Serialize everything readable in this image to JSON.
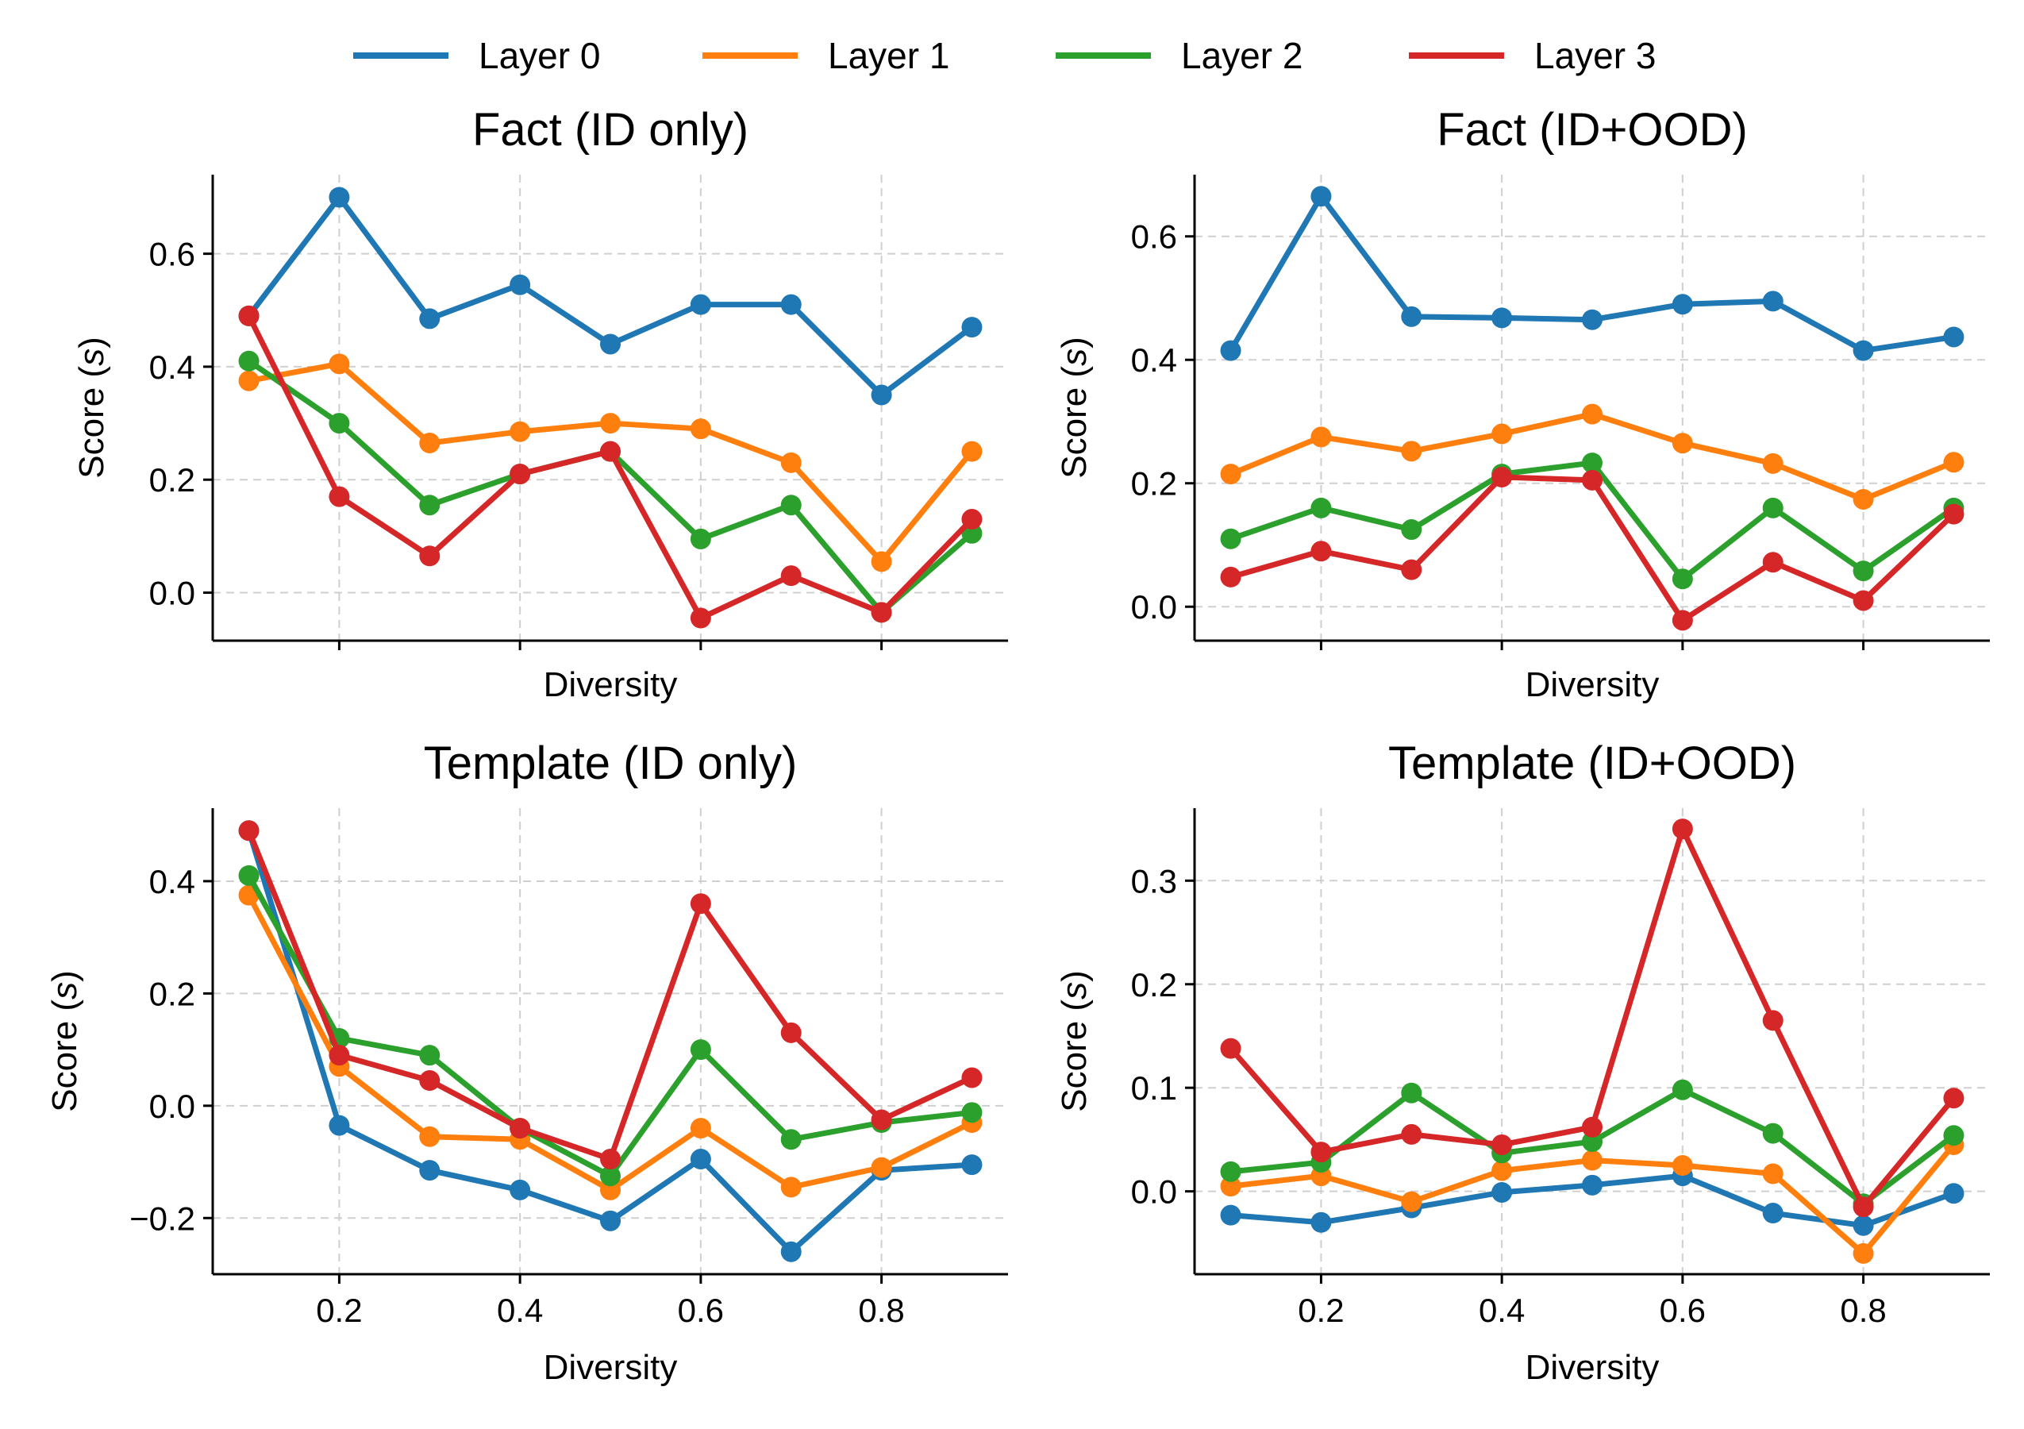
{
  "legend": [
    {
      "name": "Layer 0",
      "color": "#1f77b4"
    },
    {
      "name": "Layer 1",
      "color": "#ff7f0e"
    },
    {
      "name": "Layer 2",
      "color": "#2ca02c"
    },
    {
      "name": "Layer 3",
      "color": "#d62728"
    }
  ],
  "chart_data": [
    {
      "type": "line",
      "title": "Fact (ID only)",
      "xlabel": "Diversity",
      "ylabel": "Score (s)",
      "xlim": [
        0.06,
        0.94
      ],
      "ylim": [
        -0.085,
        0.74
      ],
      "xticks": [
        0.2,
        0.4,
        0.6,
        0.8
      ],
      "show_xtick_labels": false,
      "yticks": [
        0.0,
        0.2,
        0.4,
        0.6
      ],
      "ytick_labels": [
        "0.0",
        "0.2",
        "0.4",
        "0.6"
      ],
      "x": [
        0.1,
        0.2,
        0.3,
        0.4,
        0.5,
        0.6,
        0.7,
        0.8,
        0.9
      ],
      "series": [
        {
          "name": "Layer 0",
          "values": [
            0.49,
            0.7,
            0.485,
            0.545,
            0.44,
            0.51,
            0.51,
            0.35,
            0.47
          ]
        },
        {
          "name": "Layer 1",
          "values": [
            0.375,
            0.405,
            0.265,
            0.285,
            0.3,
            0.29,
            0.23,
            0.055,
            0.25
          ]
        },
        {
          "name": "Layer 2",
          "values": [
            0.41,
            0.3,
            0.155,
            0.21,
            0.25,
            0.095,
            0.155,
            -0.035,
            0.105
          ]
        },
        {
          "name": "Layer 3",
          "values": [
            0.49,
            0.17,
            0.065,
            0.21,
            0.25,
            -0.045,
            0.03,
            -0.035,
            0.13
          ]
        }
      ]
    },
    {
      "type": "line",
      "title": "Fact (ID+OOD)",
      "xlabel": "Diversity",
      "ylabel": "Score (s)",
      "xlim": [
        0.06,
        0.94
      ],
      "ylim": [
        -0.055,
        0.7
      ],
      "xticks": [
        0.2,
        0.4,
        0.6,
        0.8
      ],
      "show_xtick_labels": false,
      "yticks": [
        0.0,
        0.2,
        0.4,
        0.6
      ],
      "ytick_labels": [
        "0.0",
        "0.2",
        "0.4",
        "0.6"
      ],
      "x": [
        0.1,
        0.2,
        0.3,
        0.4,
        0.5,
        0.6,
        0.7,
        0.8,
        0.9
      ],
      "series": [
        {
          "name": "Layer 0",
          "values": [
            0.415,
            0.665,
            0.47,
            0.468,
            0.465,
            0.49,
            0.495,
            0.415,
            0.437
          ]
        },
        {
          "name": "Layer 1",
          "values": [
            0.215,
            0.275,
            0.252,
            0.28,
            0.312,
            0.265,
            0.232,
            0.174,
            0.234
          ]
        },
        {
          "name": "Layer 2",
          "values": [
            0.11,
            0.16,
            0.125,
            0.215,
            0.233,
            0.045,
            0.16,
            0.058,
            0.16
          ]
        },
        {
          "name": "Layer 3",
          "values": [
            0.048,
            0.09,
            0.06,
            0.21,
            0.205,
            -0.022,
            0.072,
            0.01,
            0.15
          ]
        }
      ]
    },
    {
      "type": "line",
      "title": "Template (ID only)",
      "xlabel": "Diversity",
      "ylabel": "Score (s)",
      "xlim": [
        0.06,
        0.94
      ],
      "ylim": [
        -0.3,
        0.53
      ],
      "xticks": [
        0.2,
        0.4,
        0.6,
        0.8
      ],
      "show_xtick_labels": true,
      "xtick_labels": [
        "0.2",
        "0.4",
        "0.6",
        "0.8"
      ],
      "yticks": [
        -0.2,
        0.0,
        0.2,
        0.4
      ],
      "ytick_labels": [
        "−0.2",
        "0.0",
        "0.2",
        "0.4"
      ],
      "x": [
        0.1,
        0.2,
        0.3,
        0.4,
        0.5,
        0.6,
        0.7,
        0.8,
        0.9
      ],
      "series": [
        {
          "name": "Layer 0",
          "values": [
            0.49,
            -0.035,
            -0.115,
            -0.15,
            -0.205,
            -0.095,
            -0.26,
            -0.115,
            -0.105
          ]
        },
        {
          "name": "Layer 1",
          "values": [
            0.375,
            0.07,
            -0.055,
            -0.06,
            -0.15,
            -0.04,
            -0.145,
            -0.11,
            -0.03
          ]
        },
        {
          "name": "Layer 2",
          "values": [
            0.41,
            0.12,
            0.09,
            -0.04,
            -0.125,
            0.1,
            -0.06,
            -0.03,
            -0.012
          ]
        },
        {
          "name": "Layer 3",
          "values": [
            0.49,
            0.09,
            0.045,
            -0.04,
            -0.095,
            0.36,
            0.13,
            -0.025,
            0.05
          ]
        }
      ]
    },
    {
      "type": "line",
      "title": "Template (ID+OOD)",
      "xlabel": "Diversity",
      "ylabel": "Score (s)",
      "xlim": [
        0.06,
        0.94
      ],
      "ylim": [
        -0.08,
        0.37
      ],
      "xticks": [
        0.2,
        0.4,
        0.6,
        0.8
      ],
      "show_xtick_labels": true,
      "xtick_labels": [
        "0.2",
        "0.4",
        "0.6",
        "0.8"
      ],
      "yticks": [
        0.0,
        0.1,
        0.2,
        0.3
      ],
      "ytick_labels": [
        "0.0",
        "0.1",
        "0.2",
        "0.3"
      ],
      "x": [
        0.1,
        0.2,
        0.3,
        0.4,
        0.5,
        0.6,
        0.7,
        0.8,
        0.9
      ],
      "series": [
        {
          "name": "Layer 0",
          "values": [
            -0.023,
            -0.03,
            -0.016,
            -0.001,
            0.006,
            0.015,
            -0.021,
            -0.033,
            -0.002
          ]
        },
        {
          "name": "Layer 1",
          "values": [
            0.005,
            0.015,
            -0.01,
            0.02,
            0.03,
            0.025,
            0.017,
            -0.06,
            0.045
          ]
        },
        {
          "name": "Layer 2",
          "values": [
            0.019,
            0.028,
            0.095,
            0.037,
            0.048,
            0.098,
            0.056,
            -0.012,
            0.054
          ]
        },
        {
          "name": "Layer 3",
          "values": [
            0.138,
            0.038,
            0.055,
            0.045,
            0.062,
            0.35,
            0.165,
            -0.015,
            0.09
          ]
        }
      ]
    }
  ]
}
